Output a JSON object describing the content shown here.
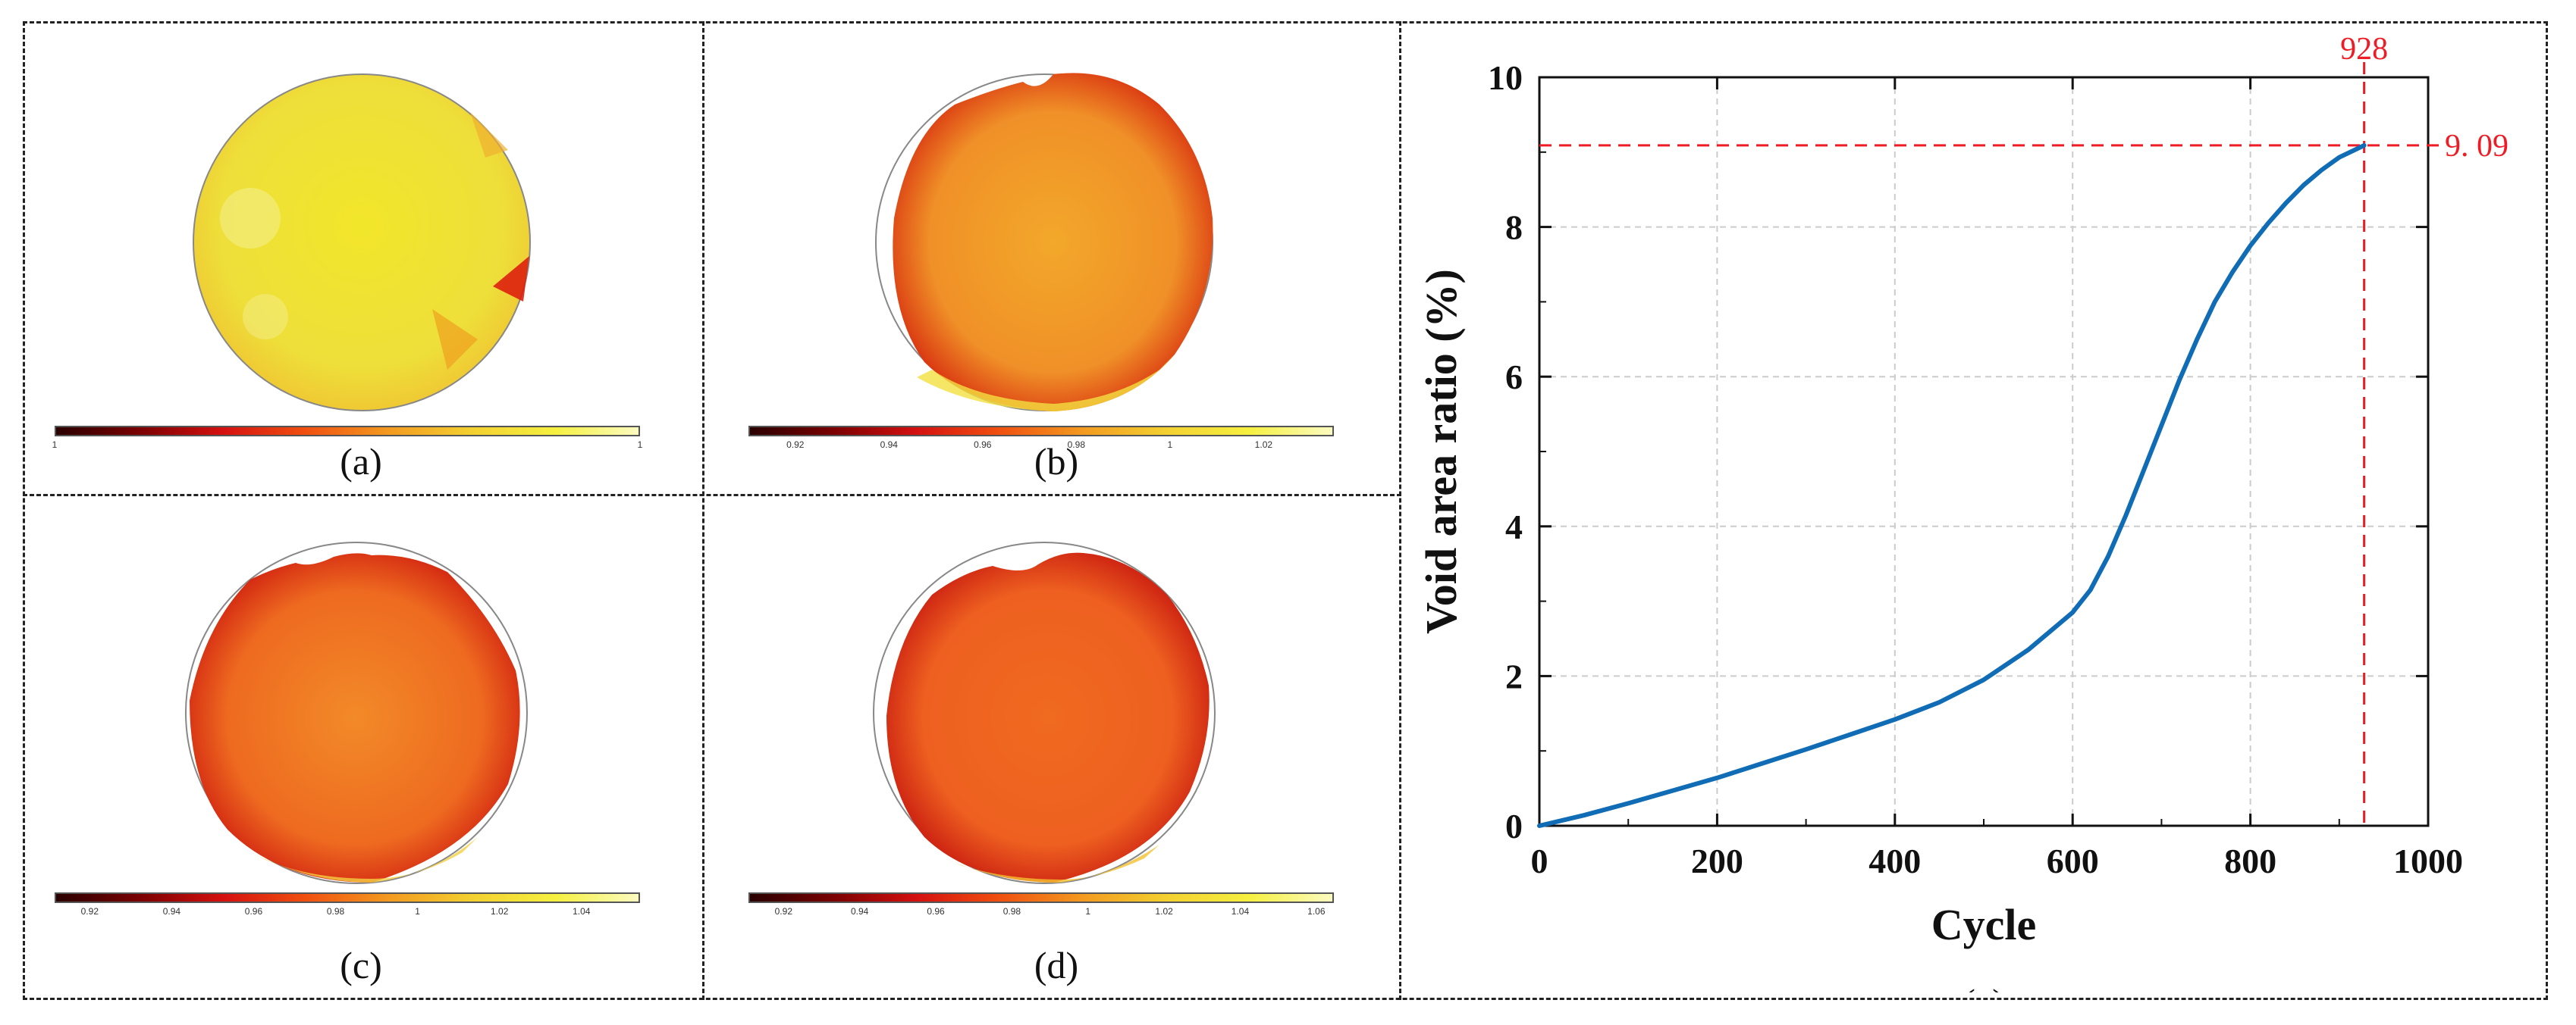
{
  "panels": [
    {
      "label": "(a)",
      "ticks": [
        "1",
        "1"
      ],
      "fill_level": 0.85
    },
    {
      "label": "(b)",
      "ticks": [
        "0.92",
        "0.94",
        "0.96",
        "0.98",
        "1",
        "1.02"
      ],
      "fill_level": 0.62
    },
    {
      "label": "(c)",
      "ticks": [
        "0.92",
        "0.94",
        "0.96",
        "0.98",
        "1",
        "1.02",
        "1.04"
      ],
      "fill_level": 0.5
    },
    {
      "label": "(d)",
      "ticks": [
        "0.92",
        "0.94",
        "0.96",
        "0.98",
        "1",
        "1.02",
        "1.04",
        "1.06"
      ],
      "fill_level": 0.47
    }
  ],
  "colors": {
    "frame": "#222222",
    "series": "#0f6cb5",
    "marker": "#ee1c24",
    "grid": "#cccccc"
  },
  "chart_data": {
    "type": "line",
    "panel_label": "(e)",
    "title": "",
    "xlabel": "Cycle",
    "ylabel": "Void area ratio (%)",
    "xlim": [
      0,
      1000
    ],
    "ylim": [
      0,
      10
    ],
    "xticks": [
      0,
      200,
      400,
      600,
      800,
      1000
    ],
    "yticks": [
      0,
      2,
      4,
      6,
      8,
      10
    ],
    "xtick_labels": [
      "0",
      "200",
      "400",
      "600",
      "800",
      "1000"
    ],
    "ytick_labels": [
      "0",
      "2",
      "4",
      "6",
      "8",
      "10"
    ],
    "grid": true,
    "series": [
      {
        "name": "Void area ratio",
        "x": [
          0,
          50,
          100,
          150,
          200,
          250,
          300,
          350,
          400,
          450,
          500,
          550,
          600,
          620,
          640,
          660,
          680,
          700,
          720,
          740,
          760,
          780,
          800,
          820,
          840,
          860,
          880,
          900,
          928
        ],
        "y": [
          0,
          0.14,
          0.3,
          0.47,
          0.64,
          0.83,
          1.02,
          1.22,
          1.42,
          1.65,
          1.95,
          2.35,
          2.85,
          3.15,
          3.6,
          4.15,
          4.75,
          5.35,
          5.95,
          6.5,
          7.0,
          7.4,
          7.75,
          8.05,
          8.32,
          8.56,
          8.76,
          8.93,
          9.09
        ]
      }
    ],
    "annotations": {
      "vline_x": 928,
      "vline_label": "928",
      "hline_y": 9.09,
      "hline_label": "9. 09"
    }
  }
}
